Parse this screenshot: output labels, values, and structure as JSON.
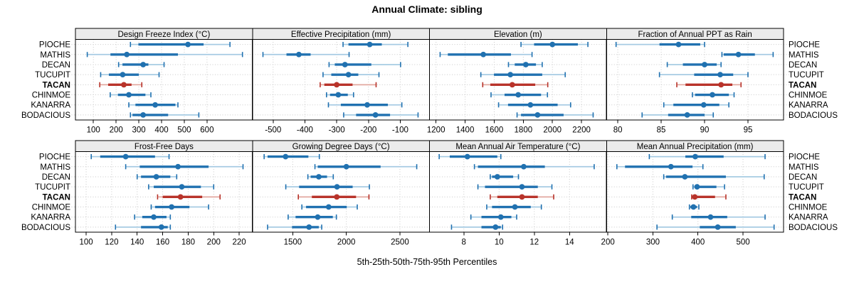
{
  "title": "Annual Climate: sibling",
  "caption": "5th-25th-50th-75th-95th Percentiles",
  "sites": [
    "PIOCHE",
    "MATHIS",
    "DECAN",
    "TUCUPIT",
    "TACAN",
    "CHINMOE",
    "KANARRA",
    "BODACIOUS"
  ],
  "highlighted_site": "TACAN",
  "colors": {
    "series": "#2071b0",
    "series_light": "#a6cbe3",
    "highlight": "#b8332a",
    "highlight_light": "#e2a79f",
    "strip_bg": "#ebebeb",
    "grid": "#c9c9c9",
    "border": "#000000"
  },
  "chart_data": {
    "type": "dotplot-percentiles",
    "title": "Annual Climate: sibling",
    "xlabel": "5th-25th-50th-75th-95th Percentiles",
    "percentile_levels": [
      5,
      25,
      50,
      75,
      95
    ],
    "layout": "2 rows x 4 columns trellis, dotted grid, gray strip headers, site labels on left and right",
    "panels": [
      {
        "label": "Design Freeze Index (°C)",
        "axis_range": [
          21,
          800
        ],
        "ticks": [
          100,
          200,
          300,
          400,
          500,
          600
        ],
        "series": [
          [
            263,
            298,
            516,
            585,
            701
          ],
          [
            73,
            175,
            247,
            472,
            756
          ],
          [
            211,
            228,
            319,
            342,
            411
          ],
          [
            132,
            168,
            229,
            300,
            389
          ],
          [
            128,
            165,
            234,
            268,
            313
          ],
          [
            174,
            208,
            256,
            329,
            353
          ],
          [
            256,
            285,
            372,
            461,
            472
          ],
          [
            263,
            272,
            319,
            429,
            564
          ]
        ]
      },
      {
        "label": "Effective Precipitation (mm)",
        "axis_range": [
          -565,
          -8
        ],
        "ticks": [
          -500,
          -400,
          -300,
          -200,
          -100
        ],
        "series": [
          [
            -280,
            -263,
            -196,
            -158,
            -76
          ],
          [
            -532,
            -458,
            -419,
            -382,
            -261
          ],
          [
            -324,
            -306,
            -274,
            -191,
            -99
          ],
          [
            -343,
            -317,
            -263,
            -232,
            -167
          ],
          [
            -352,
            -339,
            -300,
            -250,
            -176
          ],
          [
            -332,
            -321,
            -295,
            -265,
            -247
          ],
          [
            -326,
            -287,
            -204,
            -139,
            -95
          ],
          [
            -278,
            -239,
            -178,
            -132,
            -44
          ]
        ]
      },
      {
        "label": "Elevation (m)",
        "axis_range": [
          1155,
          2372
        ],
        "ticks": [
          1200,
          1400,
          1600,
          1800,
          2000,
          2200
        ],
        "series": [
          [
            1784,
            1874,
            2000,
            2175,
            2244
          ],
          [
            1228,
            1281,
            1525,
            1715,
            1860
          ],
          [
            1698,
            1741,
            1817,
            1887,
            1930
          ],
          [
            1508,
            1598,
            1711,
            1930,
            2088
          ],
          [
            1521,
            1573,
            1724,
            1882,
            1968
          ],
          [
            1578,
            1671,
            1765,
            1922,
            1966
          ],
          [
            1630,
            1695,
            1849,
            2036,
            2125
          ],
          [
            1757,
            1784,
            1898,
            2077,
            2280
          ]
        ]
      },
      {
        "label": "Fraction of Annual PPT as Rain",
        "axis_range": [
          78.7,
          99.1
        ],
        "ticks": [
          80,
          85,
          90,
          95
        ],
        "series": [
          [
            79.8,
            84.8,
            87.0,
            89.5,
            90.0
          ],
          [
            92.0,
            92.2,
            93.9,
            95.8,
            97.9
          ],
          [
            85.7,
            87.5,
            90.0,
            91.4,
            91.9
          ],
          [
            84.8,
            88.8,
            91.8,
            93.3,
            95.0
          ],
          [
            86.8,
            87.8,
            91.9,
            93.2,
            94.2
          ],
          [
            88.6,
            88.9,
            90.9,
            92.8,
            93.4
          ],
          [
            85.3,
            86.4,
            89.9,
            91.7,
            92.8
          ],
          [
            82.8,
            85.8,
            88.0,
            90.0,
            91.0
          ]
        ]
      },
      {
        "label": "Frost-Free Days",
        "axis_range": [
          91.6,
          230.4
        ],
        "ticks": [
          100,
          120,
          140,
          160,
          180,
          200,
          220
        ],
        "series": [
          [
            104,
            111,
            131,
            154,
            165
          ],
          [
            131,
            142,
            172,
            196,
            223
          ],
          [
            140,
            143,
            155,
            166,
            171
          ],
          [
            149,
            153,
            175,
            190,
            200
          ],
          [
            156,
            160,
            174,
            191,
            205
          ],
          [
            151,
            154,
            167,
            181,
            196
          ],
          [
            138,
            144,
            153,
            163,
            166
          ],
          [
            123,
            143,
            159,
            164,
            166
          ]
        ]
      },
      {
        "label": "Growing Degree Days (°C)",
        "axis_range": [
          1124,
          2776
        ],
        "ticks": [
          1500,
          2000,
          2500
        ],
        "series": [
          [
            1233,
            1265,
            1433,
            1646,
            1748
          ],
          [
            1707,
            1733,
            2000,
            2320,
            2657
          ],
          [
            1641,
            1667,
            1743,
            1820,
            1878
          ],
          [
            1435,
            1559,
            1913,
            2059,
            2215
          ],
          [
            1552,
            1678,
            1911,
            2091,
            2211
          ],
          [
            1585,
            1624,
            1835,
            2004,
            2102
          ],
          [
            1457,
            1526,
            1733,
            1874,
            1907
          ],
          [
            1265,
            1493,
            1652,
            1743,
            1770
          ]
        ]
      },
      {
        "label": "Mean Annual Air Temperature (°C)",
        "axis_range": [
          6.05,
          16.1
        ],
        "ticks": [
          8,
          10,
          12,
          14
        ],
        "series": [
          [
            6.6,
            7.2,
            8.2,
            9.9,
            10.1
          ],
          [
            8.6,
            8.8,
            11.4,
            12.6,
            15.4
          ],
          [
            9.5,
            9.6,
            9.9,
            10.8,
            11.1
          ],
          [
            8.8,
            9.2,
            11.3,
            12.2,
            13.0
          ],
          [
            9.5,
            9.9,
            11.3,
            12.2,
            13.1
          ],
          [
            9.3,
            9.6,
            10.9,
            11.8,
            12.4
          ],
          [
            8.4,
            9.0,
            10.1,
            10.7,
            11.0
          ],
          [
            7.3,
            9.0,
            9.8,
            10.1,
            10.2
          ]
        ]
      },
      {
        "label": "Mean Annual Precipitation (mm)",
        "axis_range": [
          197,
          590
        ],
        "ticks": [
          200,
          300,
          400,
          500
        ],
        "series": [
          [
            292,
            372,
            394,
            457,
            549
          ],
          [
            220,
            238,
            340,
            388,
            411
          ],
          [
            324,
            329,
            371,
            462,
            547
          ],
          [
            389,
            392,
            398,
            441,
            459
          ],
          [
            386,
            389,
            393,
            438,
            462
          ],
          [
            381,
            383,
            390,
            398,
            402
          ],
          [
            343,
            385,
            428,
            465,
            549
          ],
          [
            309,
            404,
            444,
            484,
            569
          ]
        ]
      }
    ]
  }
}
